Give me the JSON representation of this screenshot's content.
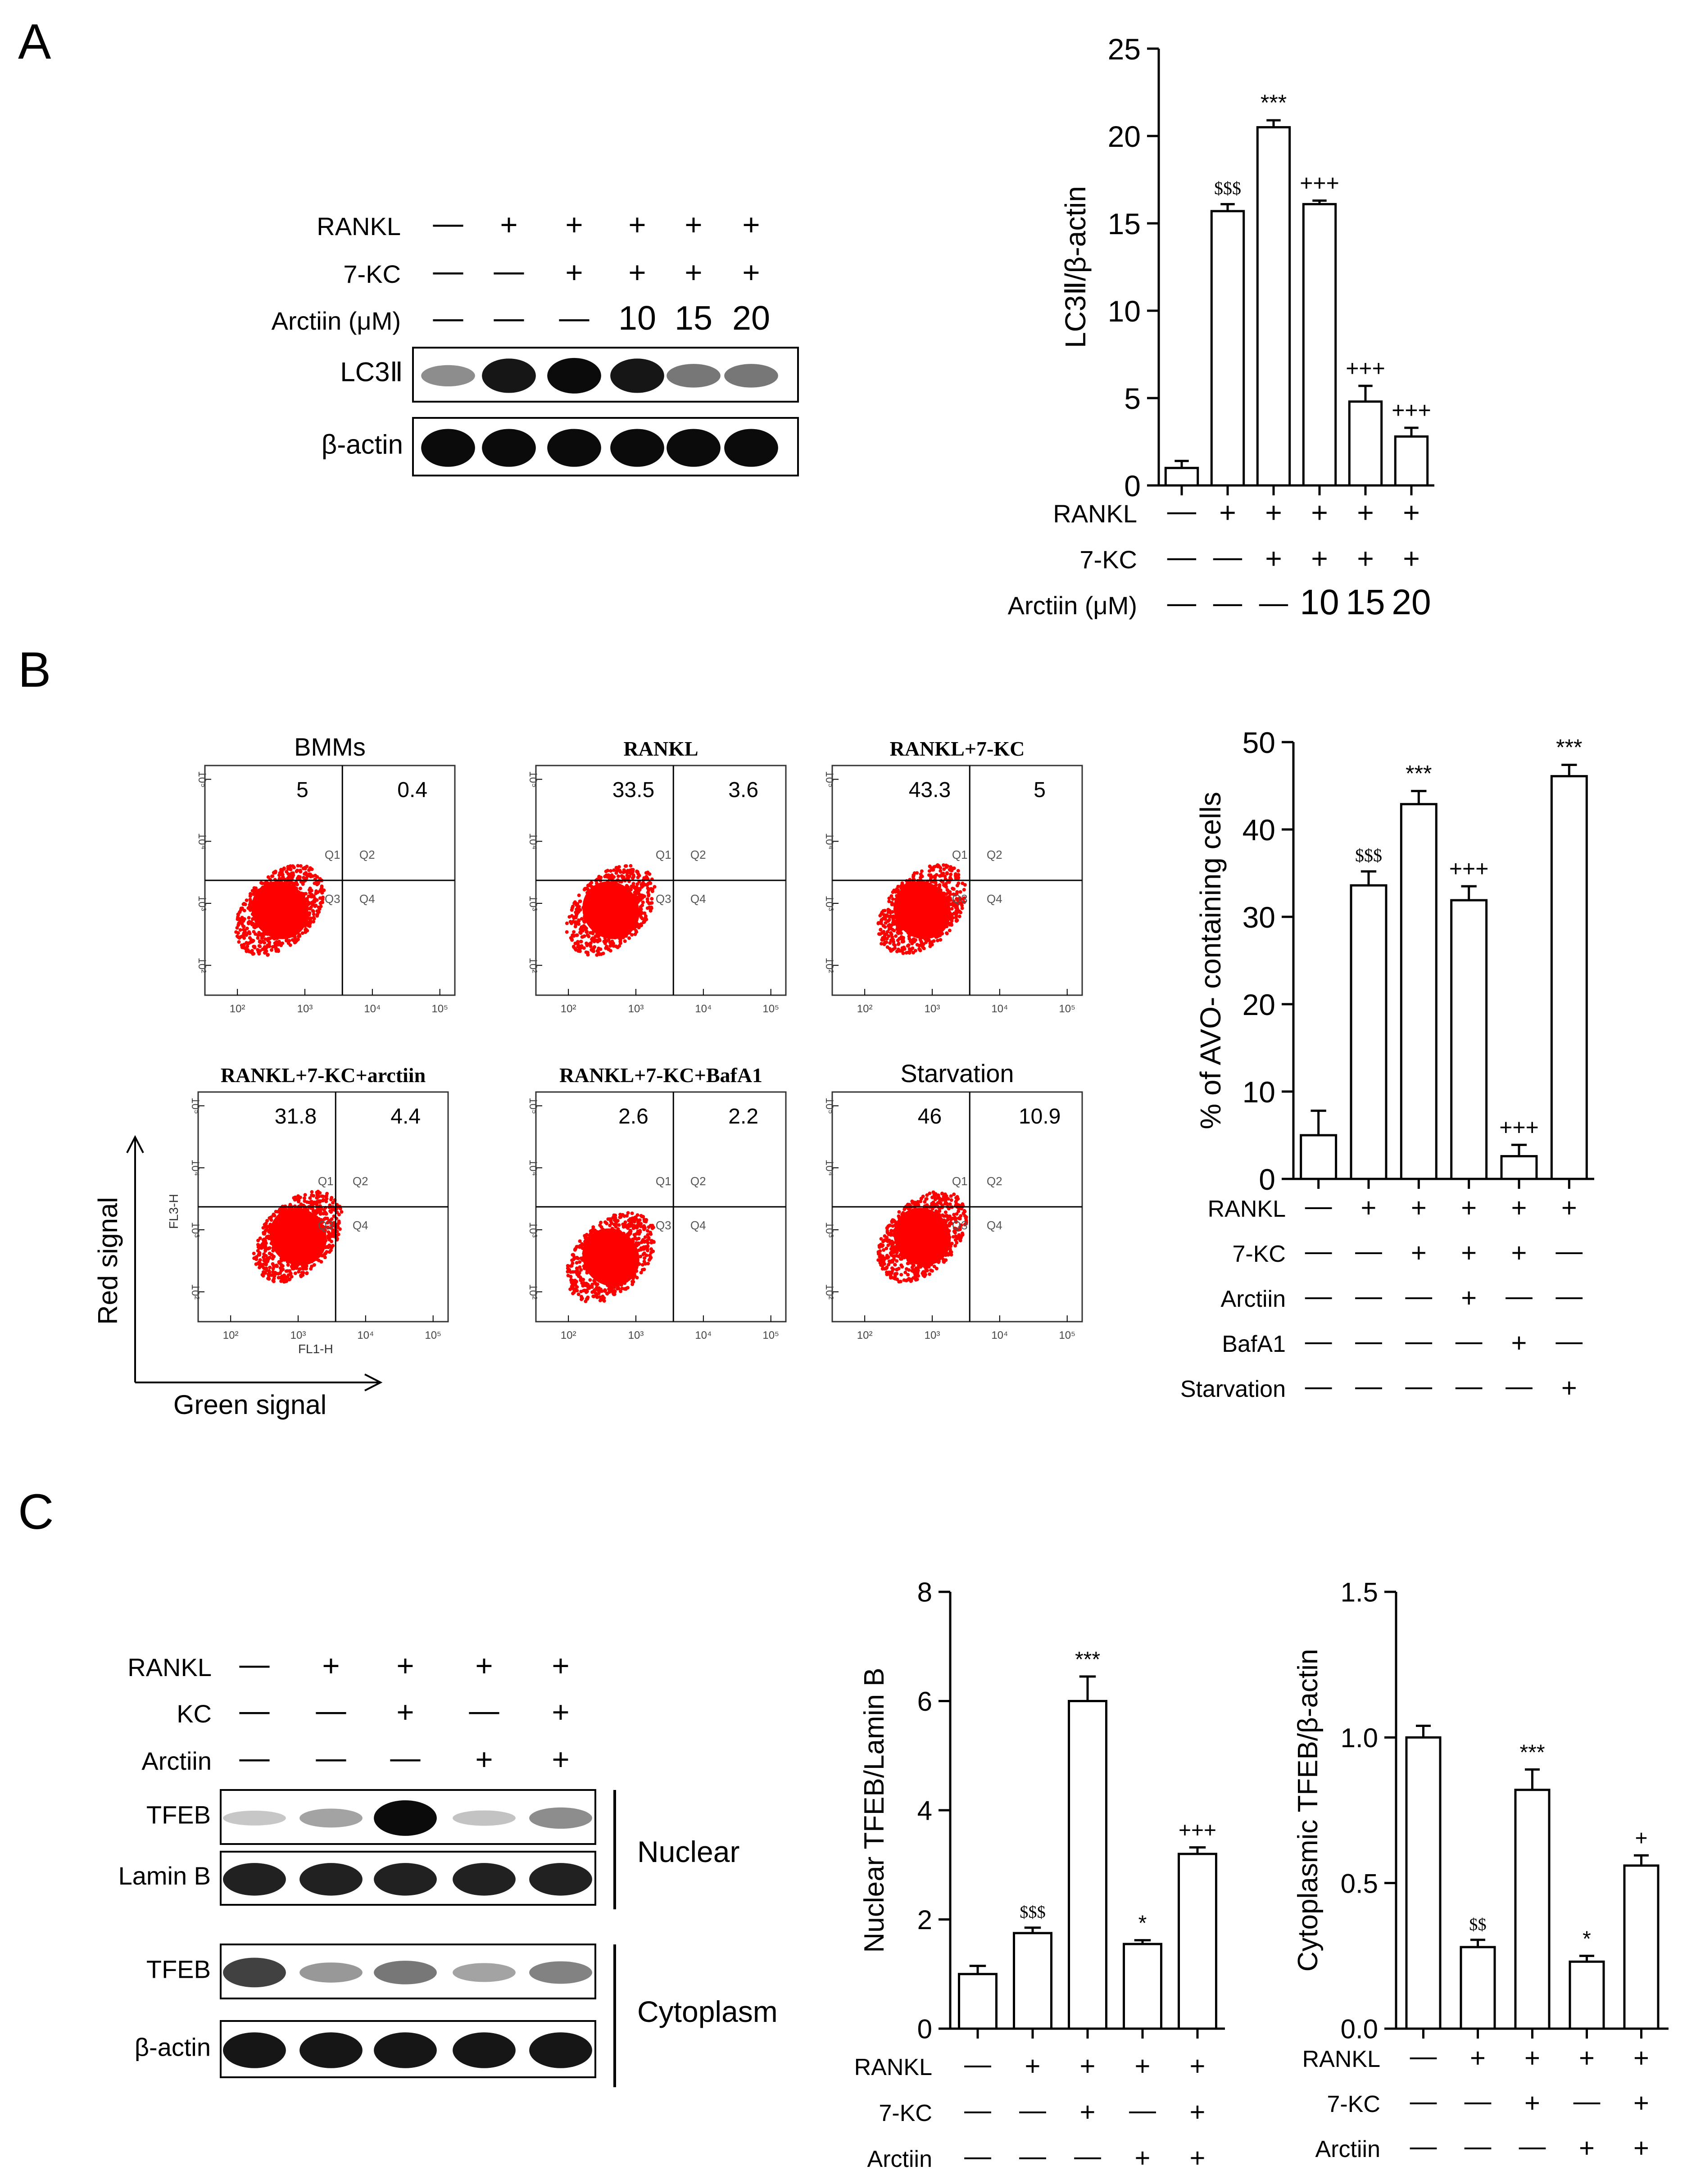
{
  "panel_labels": [
    "A",
    "B",
    "C"
  ],
  "western_a": {
    "conditions": [
      {
        "label": "RANKL",
        "values": [
          "—",
          "+",
          "+",
          "+",
          "+",
          "+"
        ]
      },
      {
        "label": "7-KC",
        "values": [
          "—",
          "—",
          "+",
          "+",
          "+",
          "+"
        ]
      },
      {
        "label": "Arctiin (μM)",
        "values": [
          "—",
          "—",
          "—",
          "10",
          "15",
          "20"
        ]
      }
    ],
    "blots": [
      {
        "label": "LC3Ⅱ",
        "intensities": [
          0.35,
          0.9,
          0.95,
          0.9,
          0.45,
          0.45
        ]
      },
      {
        "label": "β-actin",
        "intensities": [
          0.95,
          0.95,
          0.95,
          0.95,
          0.95,
          0.95
        ]
      }
    ]
  },
  "facs": {
    "plots": [
      {
        "title": "BMMs",
        "q1": "5",
        "q2": "0.4"
      },
      {
        "title": "RANKL",
        "q1": "33.5",
        "q2": "3.6"
      },
      {
        "title": "RANKL+7-KC",
        "q1": "43.3",
        "q2": "5"
      },
      {
        "title": "RANKL+7-KC+arctiin",
        "q1": "31.8",
        "q2": "4.4"
      },
      {
        "title": "RANKL+7-KC+BafA1",
        "q1": "2.6",
        "q2": "2.2"
      },
      {
        "title": "Starvation",
        "q1": "46",
        "q2": "10.9"
      }
    ],
    "quadrant_labels": [
      "Q1",
      "Q2",
      "Q3",
      "Q4"
    ],
    "x_ticks": [
      "10²",
      "10³",
      "10⁴",
      "10⁵"
    ],
    "y_ticks": [
      "10²",
      "10³",
      "10⁴",
      "10⁵"
    ],
    "x_channel": "FL1-H",
    "y_channel": "FL3-H",
    "y_arrow_label": "Red signal",
    "x_arrow_label": "Green signal",
    "dot_color": "#ff0000"
  },
  "western_c": {
    "conditions": [
      {
        "label": "RANKL",
        "values": [
          "—",
          "+",
          "+",
          "+",
          "+"
        ]
      },
      {
        "label": "KC",
        "values": [
          "—",
          "—",
          "+",
          "—",
          "+"
        ]
      },
      {
        "label": "Arctiin",
        "values": [
          "—",
          "—",
          "—",
          "+",
          "+"
        ]
      }
    ],
    "blots": [
      {
        "label": "TFEB",
        "intensities": [
          0.08,
          0.25,
          0.95,
          0.1,
          0.35
        ]
      },
      {
        "label": "Lamin B",
        "intensities": [
          0.85,
          0.85,
          0.85,
          0.85,
          0.85
        ]
      },
      {
        "label": "TFEB",
        "intensities": [
          0.7,
          0.3,
          0.45,
          0.25,
          0.4
        ]
      },
      {
        "label": "β-actin",
        "intensities": [
          0.9,
          0.9,
          0.9,
          0.9,
          0.9
        ]
      }
    ],
    "compartments": [
      "Nuclear",
      "Cytoplasm"
    ]
  },
  "chart_data": [
    {
      "type": "bar",
      "id": "A",
      "ylabel": "LC3Ⅱ/β-actin",
      "ylim": [
        0,
        25
      ],
      "yticks": [
        0,
        5,
        10,
        15,
        20,
        25
      ],
      "values": [
        1.0,
        15.7,
        20.5,
        16.1,
        4.8,
        2.8
      ],
      "errors": [
        0.4,
        0.4,
        0.4,
        0.2,
        0.9,
        0.5
      ],
      "annotations": [
        "",
        "$$$",
        "***",
        "+++",
        "+++",
        "+++"
      ],
      "conditions": [
        {
          "label": "RANKL",
          "values": [
            "—",
            "+",
            "+",
            "+",
            "+",
            "+"
          ]
        },
        {
          "label": "7-KC",
          "values": [
            "—",
            "—",
            "+",
            "+",
            "+",
            "+"
          ]
        },
        {
          "label": "Arctiin (μM)",
          "values": [
            "—",
            "—",
            "—",
            "10",
            "15",
            "20"
          ]
        }
      ]
    },
    {
      "type": "bar",
      "id": "B",
      "ylabel": "% of AVO- containing cells",
      "ylim": [
        0,
        50
      ],
      "yticks": [
        0,
        10,
        20,
        30,
        40,
        50
      ],
      "values": [
        5.0,
        33.6,
        42.9,
        31.9,
        2.6,
        46.1
      ],
      "errors": [
        2.8,
        1.6,
        1.5,
        1.6,
        1.3,
        1.3
      ],
      "annotations": [
        "",
        "$$$",
        "***",
        "+++",
        "+++",
        "***"
      ],
      "conditions": [
        {
          "label": "RANKL",
          "values": [
            "—",
            "+",
            "+",
            "+",
            "+",
            "+"
          ]
        },
        {
          "label": "7-KC",
          "values": [
            "—",
            "—",
            "+",
            "+",
            "+",
            "—"
          ]
        },
        {
          "label": "Arctiin",
          "values": [
            "—",
            "—",
            "—",
            "+",
            "—",
            "—"
          ]
        },
        {
          "label": "BafA1",
          "values": [
            "—",
            "—",
            "—",
            "—",
            "+",
            "—"
          ]
        },
        {
          "label": "Starvation",
          "values": [
            "—",
            "—",
            "—",
            "—",
            "—",
            "+"
          ]
        }
      ]
    },
    {
      "type": "bar",
      "id": "C1",
      "ylabel": "Nuclear TFEB/Lamin B",
      "ylim": [
        0,
        8
      ],
      "yticks": [
        0,
        2,
        4,
        6,
        8
      ],
      "values": [
        1.0,
        1.75,
        6.0,
        1.55,
        3.2
      ],
      "errors": [
        0.15,
        0.1,
        0.45,
        0.07,
        0.12
      ],
      "annotations": [
        "",
        "$$$",
        "***",
        "*",
        "+++"
      ],
      "conditions": [
        {
          "label": "RANKL",
          "values": [
            "—",
            "+",
            "+",
            "+",
            "+"
          ]
        },
        {
          "label": "7-KC",
          "values": [
            "—",
            "—",
            "+",
            "—",
            "+"
          ]
        },
        {
          "label": "Arctiin",
          "values": [
            "—",
            "—",
            "—",
            "+",
            "+"
          ]
        }
      ]
    },
    {
      "type": "bar",
      "id": "C2",
      "ylabel": "Cytoplasmic TFEB/β-actin",
      "ylim": [
        0,
        1.5
      ],
      "yticks": [
        "0.0",
        "0.5",
        "1.0",
        "1.5"
      ],
      "values": [
        1.0,
        0.28,
        0.82,
        0.23,
        0.56
      ],
      "errors": [
        0.04,
        0.025,
        0.07,
        0.02,
        0.035
      ],
      "annotations": [
        "",
        "$$",
        "***",
        "*",
        "+"
      ],
      "conditions": [
        {
          "label": "RANKL",
          "values": [
            "—",
            "+",
            "+",
            "+",
            "+"
          ]
        },
        {
          "label": "7-KC",
          "values": [
            "—",
            "—",
            "+",
            "—",
            "+"
          ]
        },
        {
          "label": "Arctiin",
          "values": [
            "—",
            "—",
            "—",
            "+",
            "+"
          ]
        }
      ]
    }
  ]
}
